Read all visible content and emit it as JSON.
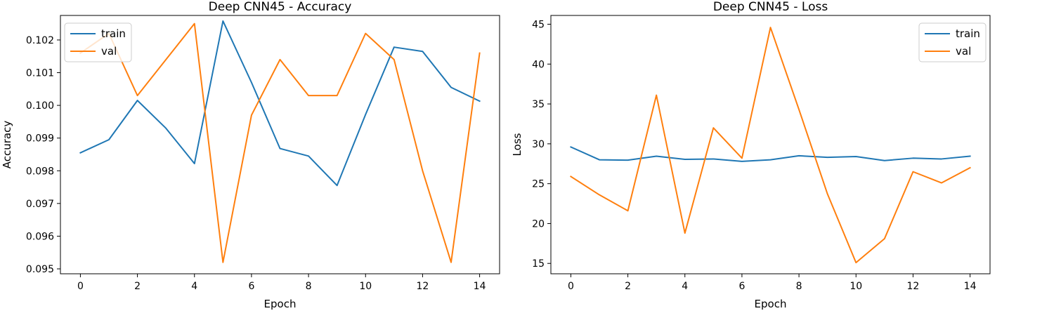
{
  "chart_data": [
    {
      "type": "line",
      "title": "Deep CNN45 - Accuracy",
      "xlabel": "Epoch",
      "ylabel": "Accuracy",
      "x": [
        0,
        1,
        2,
        3,
        4,
        5,
        6,
        7,
        8,
        9,
        10,
        11,
        12,
        13,
        14
      ],
      "xlim": [
        -0.7,
        14.7
      ],
      "ylim": [
        0.09485,
        0.10275
      ],
      "xticks": [
        0,
        2,
        4,
        6,
        8,
        10,
        12,
        14
      ],
      "xtick_labels": [
        "0",
        "2",
        "4",
        "6",
        "8",
        "10",
        "12",
        "14"
      ],
      "yticks": [
        0.095,
        0.096,
        0.097,
        0.098,
        0.099,
        0.1,
        0.101,
        0.102
      ],
      "ytick_labels": [
        "0.095",
        "0.096",
        "0.097",
        "0.098",
        "0.099",
        "0.100",
        "0.101",
        "0.102"
      ],
      "grid": false,
      "legend_position": "top-left",
      "series": [
        {
          "name": "train",
          "color": "#1f77b4",
          "values": [
            0.09855,
            0.09895,
            0.10015,
            0.0993,
            0.09822,
            0.10258,
            0.1007,
            0.09868,
            0.09845,
            0.09755,
            0.09972,
            0.10178,
            0.10165,
            0.10055,
            0.10013
          ]
        },
        {
          "name": "val",
          "color": "#ff7f0e",
          "values": [
            0.1016,
            0.1022,
            0.1003,
            0.1014,
            0.1025,
            0.0952,
            0.0997,
            0.1014,
            0.1003,
            0.1003,
            0.1022,
            0.1014,
            0.098,
            0.0952,
            0.1016
          ]
        }
      ]
    },
    {
      "type": "line",
      "title": "Deep CNN45 - Loss",
      "xlabel": "Epoch",
      "ylabel": "Loss",
      "x": [
        0,
        1,
        2,
        3,
        4,
        5,
        6,
        7,
        8,
        9,
        10,
        11,
        12,
        13,
        14
      ],
      "xlim": [
        -0.7,
        14.7
      ],
      "ylim": [
        13.7,
        46.1
      ],
      "xticks": [
        0,
        2,
        4,
        6,
        8,
        10,
        12,
        14
      ],
      "xtick_labels": [
        "0",
        "2",
        "4",
        "6",
        "8",
        "10",
        "12",
        "14"
      ],
      "yticks": [
        15,
        20,
        25,
        30,
        35,
        40,
        45
      ],
      "ytick_labels": [
        "15",
        "20",
        "25",
        "30",
        "35",
        "40",
        "45"
      ],
      "grid": false,
      "legend_position": "top-right",
      "series": [
        {
          "name": "train",
          "color": "#1f77b4",
          "values": [
            29.6,
            28.0,
            27.95,
            28.45,
            28.05,
            28.1,
            27.8,
            28.0,
            28.5,
            28.3,
            28.4,
            27.9,
            28.2,
            28.1,
            28.45
          ]
        },
        {
          "name": "val",
          "color": "#ff7f0e",
          "values": [
            25.9,
            23.6,
            21.6,
            36.1,
            18.8,
            32.0,
            28.2,
            44.6,
            34.3,
            23.7,
            15.1,
            18.1,
            26.5,
            25.1,
            27.0
          ]
        }
      ]
    }
  ]
}
